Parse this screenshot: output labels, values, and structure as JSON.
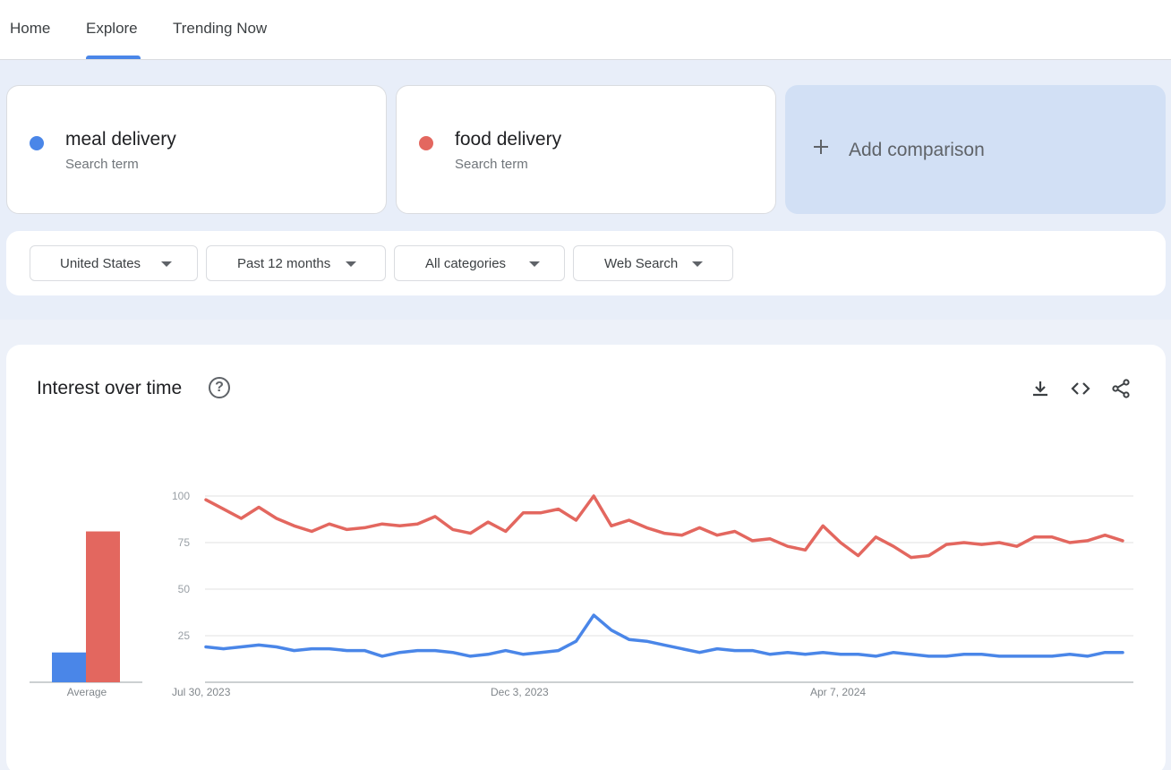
{
  "nav": {
    "tabs": [
      {
        "label": "Home"
      },
      {
        "label": "Explore"
      },
      {
        "label": "Trending Now"
      }
    ],
    "active_tab": "Explore",
    "accent_color": "#4a86e8"
  },
  "terms": [
    {
      "name": "meal delivery",
      "sub": "Search term",
      "color": "#4a86e8"
    },
    {
      "name": "food delivery",
      "sub": "Search term",
      "color": "#e3675f"
    }
  ],
  "add_comparison": {
    "label": "Add comparison",
    "icon": "plus-icon"
  },
  "filters": [
    {
      "label": "United States",
      "icon": "caret-down-icon"
    },
    {
      "label": "Past 12 months",
      "icon": "caret-down-icon"
    },
    {
      "label": "All categories",
      "icon": "caret-down-icon"
    },
    {
      "label": "Web Search",
      "icon": "caret-down-icon"
    }
  ],
  "interest": {
    "title": "Interest over time",
    "help_icon": "help-circle-icon",
    "actions": [
      "download-icon",
      "embed-code-icon",
      "share-icon"
    ],
    "average_label": "Average"
  },
  "chart_data": [
    {
      "type": "bar",
      "categories": [
        "Average"
      ],
      "series": [
        {
          "name": "meal delivery",
          "color": "#4a86e8",
          "values": [
            16
          ]
        },
        {
          "name": "food delivery",
          "color": "#e3675f",
          "values": [
            81
          ]
        }
      ],
      "ylim": [
        0,
        100
      ]
    },
    {
      "type": "line",
      "x_ticks": [
        "Jul 30, 2023",
        "Dec 3, 2023",
        "Apr 7, 2024"
      ],
      "y_ticks": [
        25,
        50,
        75,
        100
      ],
      "ylim": [
        0,
        100
      ],
      "grid": true,
      "series": [
        {
          "name": "meal delivery",
          "color": "#4a86e8",
          "values": [
            19,
            18,
            19,
            20,
            19,
            17,
            18,
            18,
            17,
            17,
            14,
            16,
            17,
            17,
            16,
            14,
            15,
            17,
            15,
            16,
            17,
            22,
            36,
            28,
            23,
            22,
            20,
            18,
            16,
            18,
            17,
            17,
            15,
            16,
            15,
            16,
            15,
            15,
            14,
            16,
            15,
            14,
            14,
            15,
            15,
            14,
            14,
            14,
            14,
            15,
            14,
            16,
            16
          ]
        },
        {
          "name": "food delivery",
          "color": "#e3675f",
          "values": [
            98,
            93,
            88,
            94,
            88,
            84,
            81,
            85,
            82,
            83,
            85,
            84,
            85,
            89,
            82,
            80,
            86,
            81,
            91,
            91,
            93,
            87,
            100,
            84,
            87,
            83,
            80,
            79,
            83,
            79,
            81,
            76,
            77,
            73,
            71,
            84,
            75,
            68,
            78,
            73,
            67,
            68,
            74,
            75,
            74,
            75,
            73,
            78,
            78,
            75,
            76,
            79,
            76
          ]
        }
      ]
    }
  ]
}
